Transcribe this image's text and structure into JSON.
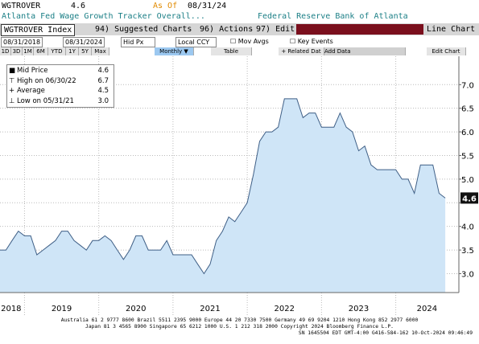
{
  "header": {
    "ticker": "WGTROVER",
    "last": "4.6",
    "as_of_label": "As Of",
    "as_of": "08/31/24",
    "title": "Atlanta Fed Wage Growth Tracker Overall...",
    "source": "Federal Reserve Bank of Atlanta"
  },
  "toolbar": {
    "security": "WGTROVER Index",
    "suggested": "94) Suggested Charts",
    "actions": "96) Actions",
    "edit": "97) Edit",
    "chart_type": "Line Chart"
  },
  "settings": {
    "start": "08/31/2018",
    "end": "08/31/2024",
    "field": "Hid Px",
    "currency": "Local CCY",
    "mov_avgs": "Mov Avgs",
    "key_events": "Key Events"
  },
  "ranges": [
    "1D",
    "3D",
    "1M",
    "6M",
    "YTD",
    "1Y",
    "5Y",
    "Max"
  ],
  "period": "Monthly ▼",
  "table": "Table",
  "related": "+ Related Dat",
  "add_data": "Add Data",
  "edit_chart": "Edit Chart",
  "footer": [
    "Australia 61 2 9777 8600 Brazil 5511 2395 9000 Europe 44 20 7330 7500 Germany 49 69 9204 1210 Hong Kong 852 2977 6000",
    "Japan 81 3 4565 8900        Singapore 65 6212 1000        U.S. 1 212 318 2000        Copyright 2024 Bloomberg Finance L.P.",
    "SN 1645504 EDT  GMT-4:00 G416-584-162 10-Oct-2024 09:46:49"
  ],
  "chart_data": {
    "type": "area",
    "stats": [
      {
        "label": "Mid Price",
        "value": "4.6"
      },
      {
        "label": "High on 06/30/22",
        "value": "6.7"
      },
      {
        "label": "Average",
        "value": "4.5"
      },
      {
        "label": "Low on 05/31/21",
        "value": "3.0"
      }
    ],
    "x": [
      2018.667,
      2018.75,
      2018.833,
      2018.917,
      2019,
      2019.083,
      2019.167,
      2019.25,
      2019.333,
      2019.417,
      2019.5,
      2019.583,
      2019.667,
      2019.75,
      2019.833,
      2019.917,
      2020,
      2020.083,
      2020.167,
      2020.25,
      2020.333,
      2020.417,
      2020.5,
      2020.583,
      2020.667,
      2020.75,
      2020.833,
      2020.917,
      2021,
      2021.083,
      2021.167,
      2021.25,
      2021.333,
      2021.417,
      2021.5,
      2021.583,
      2021.667,
      2021.75,
      2021.833,
      2021.917,
      2022,
      2022.083,
      2022.167,
      2022.25,
      2022.333,
      2022.417,
      2022.5,
      2022.583,
      2022.667,
      2022.75,
      2022.833,
      2022.917,
      2023,
      2023.083,
      2023.167,
      2023.25,
      2023.333,
      2023.417,
      2023.5,
      2023.583,
      2023.667,
      2023.75,
      2023.833,
      2023.917,
      2024,
      2024.083,
      2024.167,
      2024.25,
      2024.333,
      2024.417,
      2024.5,
      2024.583,
      2024.667
    ],
    "series": [
      {
        "name": "Mid Price",
        "color": "#3f5f86",
        "fill": "#cfe5f7",
        "values": [
          3.5,
          3.5,
          3.7,
          3.9,
          3.8,
          3.8,
          3.4,
          3.5,
          3.6,
          3.7,
          3.9,
          3.9,
          3.7,
          3.6,
          3.5,
          3.7,
          3.7,
          3.8,
          3.7,
          3.5,
          3.3,
          3.5,
          3.8,
          3.8,
          3.5,
          3.5,
          3.5,
          3.7,
          3.4,
          3.4,
          3.4,
          3.4,
          3.2,
          3.0,
          3.2,
          3.7,
          3.9,
          4.2,
          4.1,
          4.3,
          4.5,
          5.1,
          5.8,
          6.0,
          6.0,
          6.1,
          6.7,
          6.7,
          6.7,
          6.3,
          6.4,
          6.4,
          6.1,
          6.1,
          6.1,
          6.4,
          6.1,
          6.0,
          5.6,
          5.7,
          5.3,
          5.2,
          5.2,
          5.2,
          5.2,
          5.0,
          5.0,
          4.7,
          5.3,
          5.3,
          5.3,
          4.7,
          4.6
        ]
      }
    ],
    "xlim": [
      2018.67,
      2024.85
    ],
    "xticks": [
      {
        "value": 2018.82,
        "label": "2018"
      },
      {
        "value": 2019.5,
        "label": "2019"
      },
      {
        "value": 2020.5,
        "label": "2020"
      },
      {
        "value": 2021.5,
        "label": "2021"
      },
      {
        "value": 2022.5,
        "label": "2022"
      },
      {
        "value": 2023.5,
        "label": "2023"
      },
      {
        "value": 2024.42,
        "label": "2024"
      }
    ],
    "xgrid": [
      2019,
      2020,
      2021,
      2022,
      2023,
      2024
    ],
    "ylim": [
      2.6,
      7.6
    ],
    "yticks": [
      {
        "value": 3,
        "label": "3.0"
      },
      3.5,
      {
        "value": 4,
        "label": "4.0"
      },
      4.5,
      {
        "value": 5,
        "label": "5.0"
      },
      5.5,
      {
        "value": 6,
        "label": "6.0"
      },
      6.5,
      {
        "value": 7,
        "label": "7.0"
      }
    ],
    "grid": true
  }
}
